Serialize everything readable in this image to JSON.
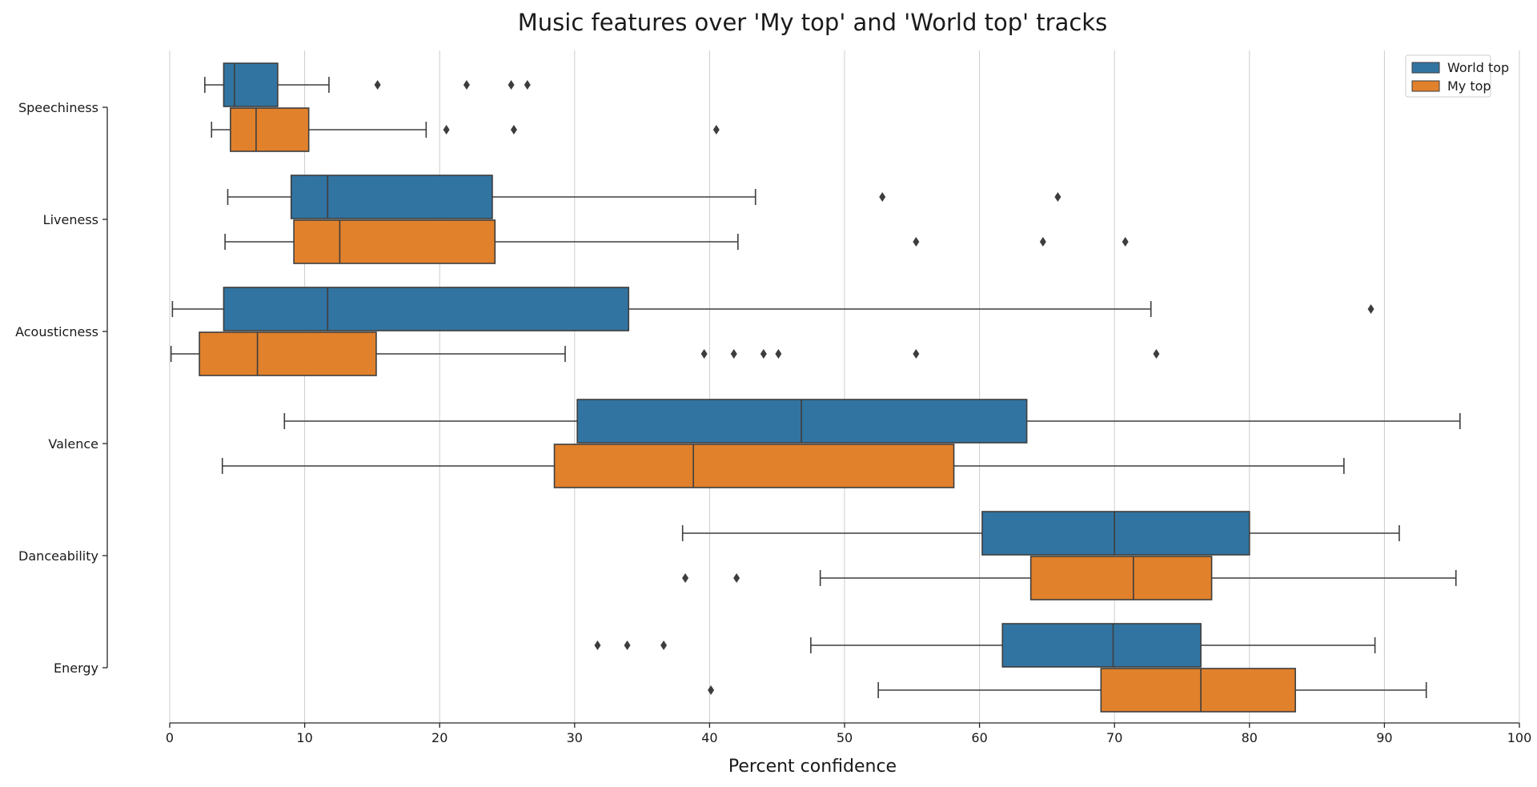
{
  "chart_data": {
    "type": "boxplot",
    "orientation": "horizontal",
    "title": "Music features over 'My top' and 'World top' tracks",
    "xlabel": "Percent confidence",
    "ylabel": "",
    "xlim": [
      0,
      100
    ],
    "xticks": [
      0,
      10,
      20,
      30,
      40,
      50,
      60,
      70,
      80,
      90,
      100
    ],
    "grid": "vertical",
    "legend_position": "top-right",
    "categories": [
      "Speechiness",
      "Liveness",
      "Acousticness",
      "Valence",
      "Danceability",
      "Energy"
    ],
    "series": [
      {
        "name": "World top",
        "color": "#3274a1",
        "boxes": [
          {
            "whislo": 2.6,
            "q1": 4.0,
            "med": 4.8,
            "q3": 8.0,
            "whishi": 11.8,
            "fliers": [
              15.4,
              22.0,
              25.3,
              26.5
            ]
          },
          {
            "whislo": 4.3,
            "q1": 9.0,
            "med": 11.7,
            "q3": 23.9,
            "whishi": 43.4,
            "fliers": [
              52.8,
              65.8
            ]
          },
          {
            "whislo": 0.2,
            "q1": 4.0,
            "med": 11.7,
            "q3": 34.0,
            "whishi": 72.7,
            "fliers": [
              89.0
            ]
          },
          {
            "whislo": 8.5,
            "q1": 30.2,
            "med": 46.8,
            "q3": 63.5,
            "whishi": 95.6,
            "fliers": []
          },
          {
            "whislo": 38.0,
            "q1": 60.2,
            "med": 70.0,
            "q3": 80.0,
            "whishi": 91.1,
            "fliers": []
          },
          {
            "whislo": 47.5,
            "q1": 61.7,
            "med": 69.9,
            "q3": 76.4,
            "whishi": 89.3,
            "fliers": [
              31.7,
              33.9,
              36.6
            ]
          }
        ]
      },
      {
        "name": "My top",
        "color": "#e1812c",
        "boxes": [
          {
            "whislo": 3.1,
            "q1": 4.5,
            "med": 6.4,
            "q3": 10.3,
            "whishi": 19.0,
            "fliers": [
              20.5,
              25.5,
              40.5
            ]
          },
          {
            "whislo": 4.1,
            "q1": 9.2,
            "med": 12.6,
            "q3": 24.1,
            "whishi": 42.1,
            "fliers": [
              55.3,
              64.7,
              70.8
            ]
          },
          {
            "whislo": 0.1,
            "q1": 2.2,
            "med": 6.5,
            "q3": 15.3,
            "whishi": 29.3,
            "fliers": [
              39.6,
              41.8,
              44.0,
              45.1,
              55.3,
              73.1
            ]
          },
          {
            "whislo": 3.9,
            "q1": 28.5,
            "med": 38.8,
            "q3": 58.1,
            "whishi": 87.0,
            "fliers": []
          },
          {
            "whislo": 48.2,
            "q1": 63.8,
            "med": 71.4,
            "q3": 77.2,
            "whishi": 95.3,
            "fliers": [
              38.2,
              42.0
            ]
          },
          {
            "whislo": 52.5,
            "q1": 69.0,
            "med": 76.4,
            "q3": 83.4,
            "whishi": 93.1,
            "fliers": [
              40.1
            ]
          }
        ]
      }
    ]
  }
}
